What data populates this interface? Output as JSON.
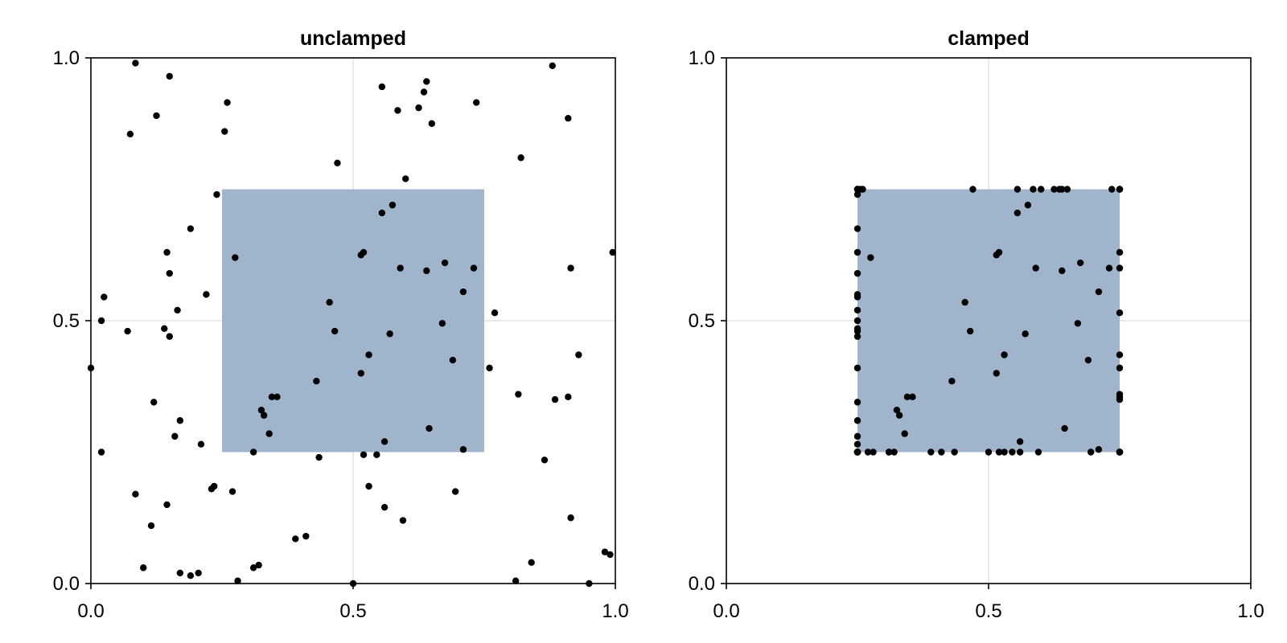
{
  "chart_data": [
    {
      "type": "scatter",
      "title": "unclamped",
      "xlim": [
        0,
        1
      ],
      "ylim": [
        0,
        1
      ],
      "xticks": [
        0.0,
        0.5,
        1.0
      ],
      "yticks": [
        0.0,
        0.5,
        1.0
      ],
      "xtick_labels": [
        "0.0",
        "0.5",
        "1.0"
      ],
      "ytick_labels": [
        "0.0",
        "0.5",
        "1.0"
      ],
      "grid": true,
      "region": {
        "x": [
          0.25,
          0.75
        ],
        "y": [
          0.25,
          0.75
        ],
        "color": "#a0b4cb"
      },
      "point_color": "#000000",
      "points": [
        [
          0.0,
          0.41
        ],
        [
          0.02,
          0.25
        ],
        [
          0.02,
          0.5
        ],
        [
          0.025,
          0.545
        ],
        [
          0.07,
          0.48
        ],
        [
          0.075,
          0.855
        ],
        [
          0.085,
          0.99
        ],
        [
          0.085,
          0.17
        ],
        [
          0.1,
          0.03
        ],
        [
          0.115,
          0.11
        ],
        [
          0.12,
          0.345
        ],
        [
          0.125,
          0.89
        ],
        [
          0.14,
          0.485
        ],
        [
          0.145,
          0.63
        ],
        [
          0.145,
          0.15
        ],
        [
          0.15,
          0.965
        ],
        [
          0.15,
          0.59
        ],
        [
          0.15,
          0.47
        ],
        [
          0.16,
          0.28
        ],
        [
          0.165,
          0.52
        ],
        [
          0.17,
          0.31
        ],
        [
          0.17,
          0.02
        ],
        [
          0.19,
          0.015
        ],
        [
          0.19,
          0.675
        ],
        [
          0.205,
          0.02
        ],
        [
          0.21,
          0.265
        ],
        [
          0.22,
          0.55
        ],
        [
          0.23,
          0.18
        ],
        [
          0.235,
          0.185
        ],
        [
          0.24,
          0.74
        ],
        [
          0.255,
          0.86
        ],
        [
          0.26,
          0.915
        ],
        [
          0.27,
          0.175
        ],
        [
          0.275,
          0.62
        ],
        [
          0.28,
          0.005
        ],
        [
          0.31,
          0.25
        ],
        [
          0.31,
          0.03
        ],
        [
          0.32,
          0.035
        ],
        [
          0.325,
          0.33
        ],
        [
          0.33,
          0.32
        ],
        [
          0.34,
          0.285
        ],
        [
          0.345,
          0.355
        ],
        [
          0.355,
          0.355
        ],
        [
          0.39,
          0.085
        ],
        [
          0.41,
          0.09
        ],
        [
          0.43,
          0.385
        ],
        [
          0.435,
          0.24
        ],
        [
          0.455,
          0.535
        ],
        [
          0.465,
          0.48
        ],
        [
          0.47,
          0.8
        ],
        [
          0.5,
          0.0
        ],
        [
          0.515,
          0.4
        ],
        [
          0.515,
          0.625
        ],
        [
          0.52,
          0.63
        ],
        [
          0.52,
          0.245
        ],
        [
          0.53,
          0.435
        ],
        [
          0.53,
          0.185
        ],
        [
          0.545,
          0.245
        ],
        [
          0.555,
          0.945
        ],
        [
          0.555,
          0.705
        ],
        [
          0.56,
          0.27
        ],
        [
          0.56,
          0.145
        ],
        [
          0.57,
          0.475
        ],
        [
          0.575,
          0.72
        ],
        [
          0.585,
          0.9
        ],
        [
          0.59,
          0.6
        ],
        [
          0.595,
          0.12
        ],
        [
          0.6,
          0.77
        ],
        [
          0.625,
          0.905
        ],
        [
          0.635,
          0.935
        ],
        [
          0.64,
          0.955
        ],
        [
          0.64,
          0.595
        ],
        [
          0.645,
          0.295
        ],
        [
          0.65,
          0.875
        ],
        [
          0.67,
          0.495
        ],
        [
          0.675,
          0.61
        ],
        [
          0.69,
          0.425
        ],
        [
          0.695,
          0.175
        ],
        [
          0.71,
          0.255
        ],
        [
          0.71,
          0.555
        ],
        [
          0.73,
          0.6
        ],
        [
          0.735,
          0.915
        ],
        [
          0.76,
          0.41
        ],
        [
          0.77,
          0.515
        ],
        [
          0.81,
          0.005
        ],
        [
          0.815,
          0.36
        ],
        [
          0.82,
          0.81
        ],
        [
          0.84,
          0.04
        ],
        [
          0.88,
          0.985
        ],
        [
          0.865,
          0.235
        ],
        [
          0.885,
          0.35
        ],
        [
          0.91,
          0.885
        ],
        [
          0.91,
          0.355
        ],
        [
          0.915,
          0.6
        ],
        [
          0.915,
          0.125
        ],
        [
          0.93,
          0.435
        ],
        [
          0.95,
          0.0
        ],
        [
          0.98,
          0.06
        ],
        [
          0.99,
          0.055
        ],
        [
          0.995,
          0.63
        ]
      ]
    },
    {
      "type": "scatter",
      "title": "clamped",
      "xlim": [
        0,
        1
      ],
      "ylim": [
        0,
        1
      ],
      "xticks": [
        0.0,
        0.5,
        1.0
      ],
      "yticks": [
        0.0,
        0.5,
        1.0
      ],
      "xtick_labels": [
        "0.0",
        "0.5",
        "1.0"
      ],
      "ytick_labels": [
        "0.0",
        "0.5",
        "1.0"
      ],
      "grid": true,
      "region": {
        "x": [
          0.25,
          0.75
        ],
        "y": [
          0.25,
          0.75
        ],
        "color": "#a0b4cb"
      },
      "point_color": "#000000",
      "points": [
        [
          0.25,
          0.41
        ],
        [
          0.25,
          0.25
        ],
        [
          0.25,
          0.5
        ],
        [
          0.25,
          0.545
        ],
        [
          0.25,
          0.48
        ],
        [
          0.25,
          0.75
        ],
        [
          0.25,
          0.75
        ],
        [
          0.25,
          0.25
        ],
        [
          0.25,
          0.25
        ],
        [
          0.25,
          0.25
        ],
        [
          0.25,
          0.345
        ],
        [
          0.25,
          0.75
        ],
        [
          0.25,
          0.485
        ],
        [
          0.25,
          0.63
        ],
        [
          0.25,
          0.25
        ],
        [
          0.25,
          0.75
        ],
        [
          0.25,
          0.59
        ],
        [
          0.25,
          0.47
        ],
        [
          0.25,
          0.28
        ],
        [
          0.25,
          0.52
        ],
        [
          0.25,
          0.31
        ],
        [
          0.25,
          0.25
        ],
        [
          0.25,
          0.25
        ],
        [
          0.25,
          0.675
        ],
        [
          0.25,
          0.25
        ],
        [
          0.25,
          0.265
        ],
        [
          0.25,
          0.55
        ],
        [
          0.25,
          0.25
        ],
        [
          0.25,
          0.25
        ],
        [
          0.25,
          0.74
        ],
        [
          0.255,
          0.75
        ],
        [
          0.26,
          0.75
        ],
        [
          0.27,
          0.25
        ],
        [
          0.275,
          0.62
        ],
        [
          0.28,
          0.25
        ],
        [
          0.31,
          0.25
        ],
        [
          0.31,
          0.25
        ],
        [
          0.32,
          0.25
        ],
        [
          0.325,
          0.33
        ],
        [
          0.33,
          0.32
        ],
        [
          0.34,
          0.285
        ],
        [
          0.345,
          0.355
        ],
        [
          0.355,
          0.355
        ],
        [
          0.39,
          0.25
        ],
        [
          0.41,
          0.25
        ],
        [
          0.43,
          0.385
        ],
        [
          0.435,
          0.25
        ],
        [
          0.455,
          0.535
        ],
        [
          0.465,
          0.48
        ],
        [
          0.47,
          0.75
        ],
        [
          0.5,
          0.25
        ],
        [
          0.515,
          0.4
        ],
        [
          0.515,
          0.625
        ],
        [
          0.52,
          0.63
        ],
        [
          0.52,
          0.25
        ],
        [
          0.53,
          0.435
        ],
        [
          0.53,
          0.25
        ],
        [
          0.545,
          0.25
        ],
        [
          0.555,
          0.75
        ],
        [
          0.555,
          0.705
        ],
        [
          0.56,
          0.27
        ],
        [
          0.56,
          0.25
        ],
        [
          0.57,
          0.475
        ],
        [
          0.575,
          0.72
        ],
        [
          0.585,
          0.75
        ],
        [
          0.59,
          0.6
        ],
        [
          0.595,
          0.25
        ],
        [
          0.6,
          0.75
        ],
        [
          0.625,
          0.75
        ],
        [
          0.635,
          0.75
        ],
        [
          0.64,
          0.75
        ],
        [
          0.64,
          0.595
        ],
        [
          0.645,
          0.295
        ],
        [
          0.65,
          0.75
        ],
        [
          0.67,
          0.495
        ],
        [
          0.675,
          0.61
        ],
        [
          0.69,
          0.425
        ],
        [
          0.695,
          0.25
        ],
        [
          0.71,
          0.255
        ],
        [
          0.71,
          0.555
        ],
        [
          0.73,
          0.6
        ],
        [
          0.735,
          0.75
        ],
        [
          0.75,
          0.41
        ],
        [
          0.75,
          0.515
        ],
        [
          0.75,
          0.25
        ],
        [
          0.75,
          0.36
        ],
        [
          0.75,
          0.75
        ],
        [
          0.75,
          0.25
        ],
        [
          0.75,
          0.75
        ],
        [
          0.75,
          0.25
        ],
        [
          0.75,
          0.35
        ],
        [
          0.75,
          0.75
        ],
        [
          0.75,
          0.355
        ],
        [
          0.75,
          0.6
        ],
        [
          0.75,
          0.25
        ],
        [
          0.75,
          0.435
        ],
        [
          0.75,
          0.25
        ],
        [
          0.75,
          0.25
        ],
        [
          0.75,
          0.25
        ],
        [
          0.75,
          0.63
        ]
      ]
    }
  ]
}
